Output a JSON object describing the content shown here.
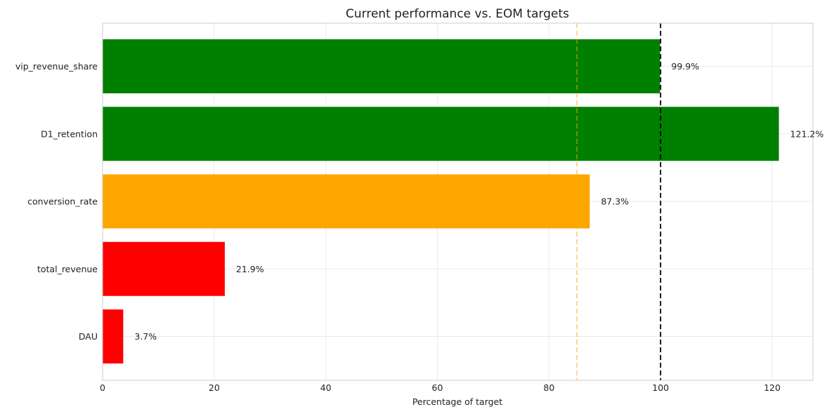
{
  "chart_data": {
    "type": "bar",
    "orientation": "horizontal",
    "title": "Current performance vs. EOM targets",
    "xlabel": "Percentage of target",
    "ylabel": "",
    "xlim": [
      0,
      127.3
    ],
    "xticks": [
      0,
      20,
      40,
      60,
      80,
      100,
      120
    ],
    "grid": true,
    "categories": [
      "vip_revenue_share",
      "D1_retention",
      "conversion_rate",
      "total_revenue",
      "DAU"
    ],
    "values": [
      99.9,
      121.2,
      87.3,
      21.9,
      3.7
    ],
    "value_labels": [
      "99.9%",
      "121.2%",
      "87.3%",
      "21.9%",
      "3.7%"
    ],
    "bar_colors": [
      "#008000",
      "#008000",
      "#ffa500",
      "#ff0000",
      "#ff0000"
    ],
    "reference_lines": [
      {
        "x": 85,
        "color": "#ffa500",
        "style": "dashed"
      },
      {
        "x": 100,
        "color": "#000000",
        "style": "dashed"
      }
    ]
  }
}
